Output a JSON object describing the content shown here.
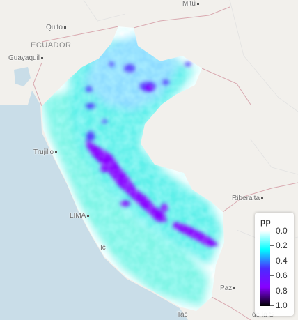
{
  "map": {
    "places": [
      {
        "id": "mitu",
        "label": "Mitú",
        "dot": true
      },
      {
        "id": "quito",
        "label": "Quito",
        "dot": true
      },
      {
        "id": "guayaquil",
        "label": "Guayaquil",
        "dot": true
      },
      {
        "id": "trujillo",
        "label": "Trujillo",
        "dot": true
      },
      {
        "id": "lima",
        "label": "LIMA",
        "dot": true
      },
      {
        "id": "riberalta",
        "label": "Riberalta",
        "dot": true
      },
      {
        "id": "paz",
        "label": "Paz",
        "dot": true
      },
      {
        "id": "tacna",
        "label": "Tac",
        "dot": false
      },
      {
        "id": "ica",
        "label": "Ic",
        "dot": false
      },
      {
        "id": "dela",
        "label": "de la S",
        "dot": false
      }
    ],
    "countries": [
      {
        "id": "ecuador",
        "label": "ECUADOR"
      }
    ]
  },
  "legend": {
    "title": "pp",
    "ticks": [
      "0.0",
      "0.2",
      "0.4",
      "0.6",
      "0.8",
      "1.0"
    ],
    "colors": [
      "#ffffff",
      "#00ffff",
      "#4b2bff",
      "#8800ff",
      "#000000"
    ]
  }
}
